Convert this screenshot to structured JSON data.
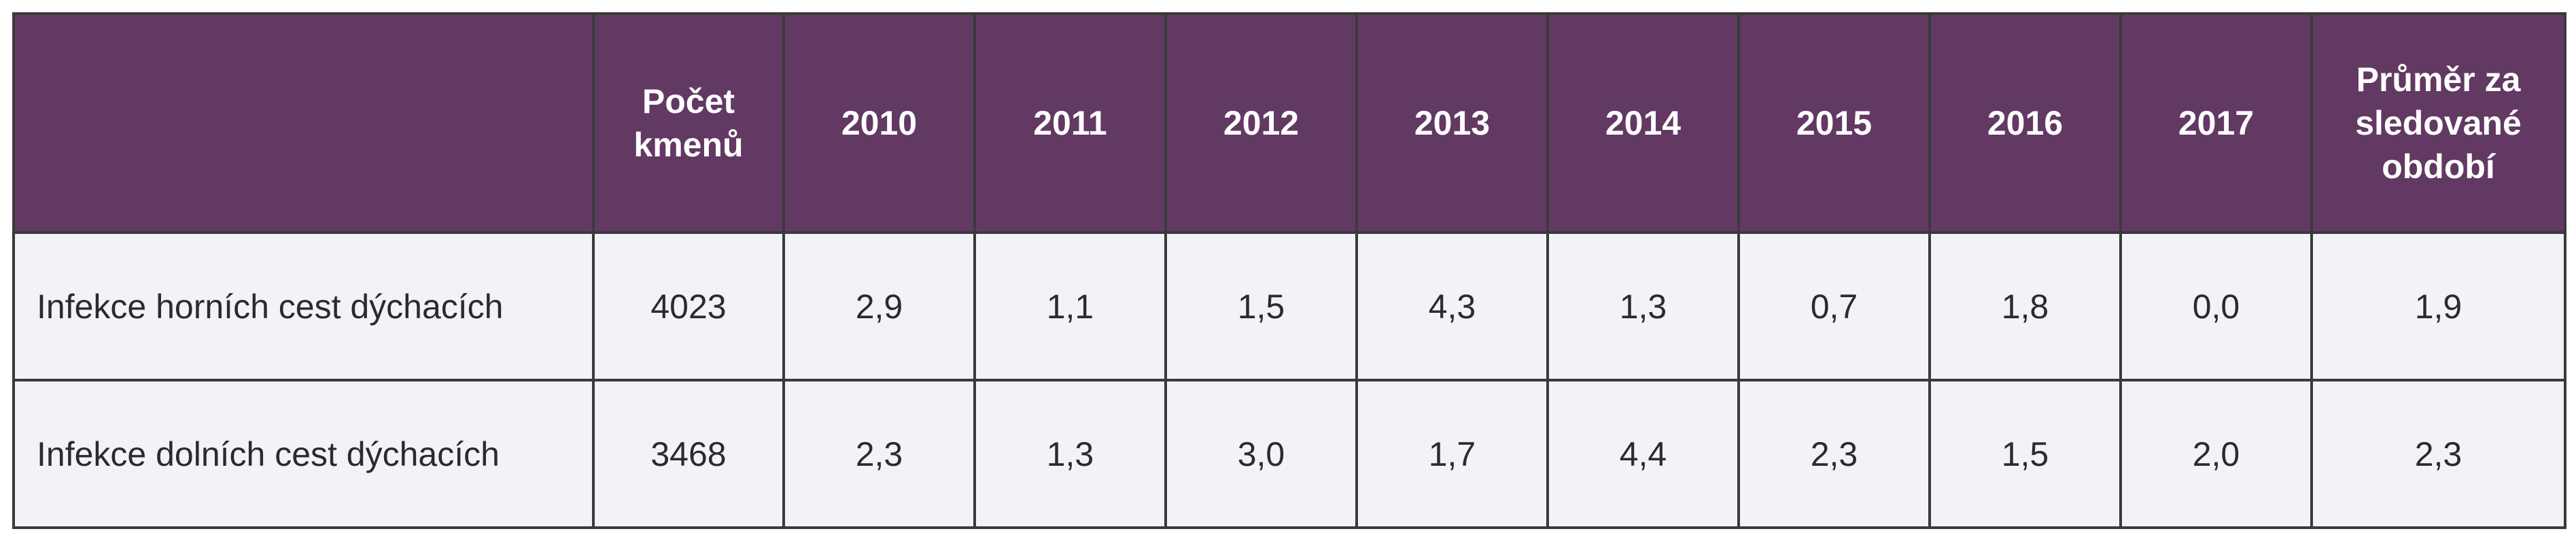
{
  "table": {
    "header": {
      "label": "",
      "count": "Počet\nkmenů",
      "years": [
        "2010",
        "2011",
        "2012",
        "2013",
        "2014",
        "2015",
        "2016",
        "2017"
      ],
      "average": "Průměr za\nsledované\nobdobí"
    },
    "rows": [
      {
        "label": "Infekce horních cest dýchacích",
        "count": "4023",
        "values": [
          "2,9",
          "1,1",
          "1,5",
          "4,3",
          "1,3",
          "0,7",
          "1,8",
          "0,0"
        ],
        "average": "1,9"
      },
      {
        "label": "Infekce dolních cest dýchacích",
        "count": "3468",
        "values": [
          "2,3",
          "1,3",
          "3,0",
          "1,7",
          "4,4",
          "2,3",
          "1,5",
          "2,0"
        ],
        "average": "2,3"
      }
    ]
  },
  "colors": {
    "header_background": "#623962",
    "header_text": "#ffffff",
    "cell_background": "#f3f2f8",
    "border": "#3a3a3a"
  }
}
